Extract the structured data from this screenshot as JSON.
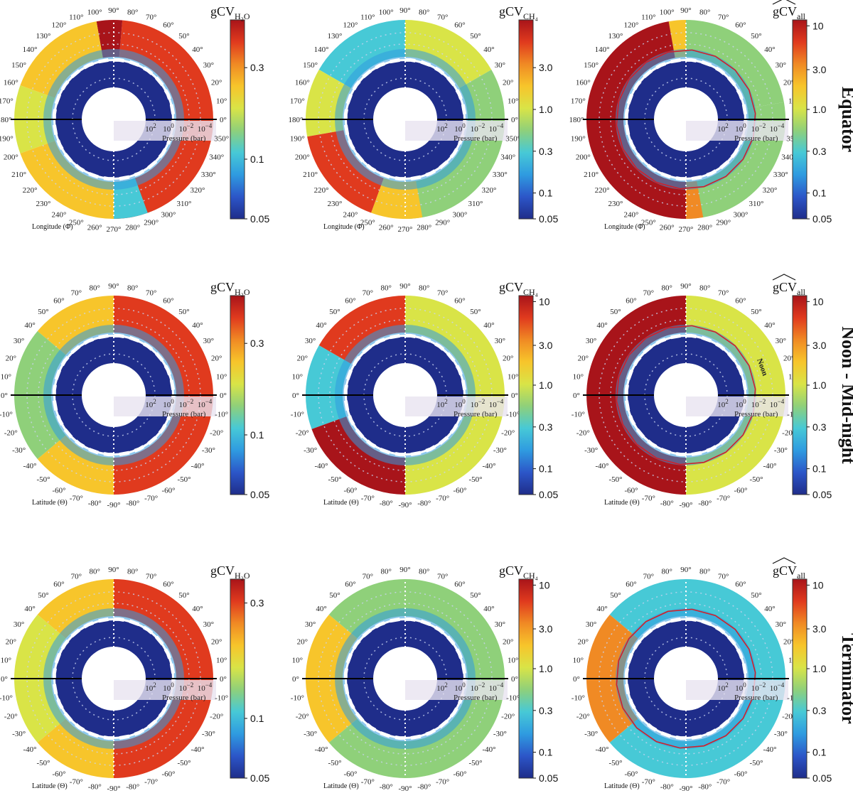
{
  "figure": {
    "rows": [
      {
        "label": "Equator",
        "angle_axis_label": "Longitude (Φ)",
        "angle_ticks": [
          "0°",
          "10°",
          "20°",
          "30°",
          "40°",
          "50°",
          "60°",
          "70°",
          "80°",
          "90°",
          "100°",
          "110°",
          "120°",
          "130°",
          "140°",
          "150°",
          "160°",
          "170°",
          "180°",
          "190°",
          "200°",
          "210°",
          "220°",
          "230°",
          "240°",
          "250°",
          "260°",
          "270°",
          "280°",
          "290°",
          "300°",
          "310°",
          "320°",
          "330°",
          "340°",
          "350°"
        ]
      },
      {
        "label": "Noon - Mid-night",
        "angle_axis_label": "Latitude (Θ)",
        "angle_ticks": [
          "0°",
          "10°",
          "20°",
          "30°",
          "40°",
          "50°",
          "60°",
          "70°",
          "80°",
          "90°",
          "80°",
          "70°",
          "60°",
          "50°",
          "40°",
          "30°",
          "20°",
          "10°",
          "0°",
          "-10°",
          "-20°",
          "-30°",
          "-40°",
          "-50°",
          "-60°",
          "-70°",
          "-80°",
          "-90°",
          "-80°",
          "-70°",
          "-60°",
          "-50°",
          "-40°",
          "-30°",
          "-20°",
          "-10°"
        ]
      },
      {
        "label": "Terminator",
        "angle_axis_label": "Latitude (Θ)",
        "angle_ticks": [
          "0°",
          "10°",
          "20°",
          "30°",
          "40°",
          "50°",
          "60°",
          "70°",
          "80°",
          "90°",
          "80°",
          "70°",
          "60°",
          "50°",
          "40°",
          "30°",
          "20°",
          "10°",
          "0°",
          "-10°",
          "-20°",
          "-30°",
          "-40°",
          "-50°",
          "-60°",
          "-70°",
          "-80°",
          "-90°",
          "-80°",
          "-70°",
          "-60°",
          "-50°",
          "-40°",
          "-30°",
          "-20°",
          "-10°"
        ]
      }
    ],
    "noon_label": "Noon",
    "pressure_axis": {
      "label": "Pressure (bar)",
      "ticks": [
        {
          "base": "10",
          "exp": "2"
        },
        {
          "base": "10",
          "exp": "0"
        },
        {
          "base": "10",
          "exp": "−2"
        },
        {
          "base": "10",
          "exp": "−4"
        }
      ]
    },
    "colorbars": [
      {
        "title_main": "gCV",
        "title_sub": "H₂O",
        "hat": false,
        "ticks": [
          "0.3",
          "0.1",
          "0.05"
        ],
        "positions": [
          0.24,
          0.7,
          1.0
        ]
      },
      {
        "title_main": "gCV",
        "title_sub": "CH₄",
        "hat": false,
        "ticks": [
          "3.0",
          "1.0",
          "0.3",
          "0.1",
          "0.05"
        ],
        "positions": [
          0.24,
          0.45,
          0.66,
          0.87,
          1.0
        ]
      },
      {
        "title_main": "gCV",
        "title_sub": "all",
        "hat": true,
        "ticks": [
          "10",
          "3.0",
          "1.0",
          "0.3",
          "0.1",
          "0.05"
        ],
        "positions": [
          0.03,
          0.25,
          0.45,
          0.66,
          0.87,
          1.0
        ]
      }
    ],
    "colorbars_row2": [
      {
        "title_main": "gCV",
        "title_sub": "H₂O",
        "hat": false,
        "ticks": [
          "0.3",
          "0.1",
          "0.05"
        ],
        "positions": [
          0.24,
          0.7,
          1.0
        ]
      },
      {
        "title_main": "gCV",
        "title_sub": "CH₄",
        "hat": false,
        "ticks": [
          "10",
          "3.0",
          "1.0",
          "0.3",
          "0.1",
          "0.05"
        ],
        "positions": [
          0.03,
          0.25,
          0.45,
          0.66,
          0.87,
          1.0
        ]
      },
      {
        "title_main": "gCV",
        "title_sub": "all",
        "hat": true,
        "ticks": [
          "10",
          "3.0",
          "1.0",
          "0.3",
          "0.1",
          "0.05"
        ],
        "positions": [
          0.03,
          0.25,
          0.45,
          0.66,
          0.87,
          1.0
        ]
      }
    ],
    "colorbars_row3": [
      {
        "title_main": "gCV",
        "title_sub": "H₂O",
        "hat": false,
        "ticks": [
          "0.3",
          "0.1",
          "0.05"
        ],
        "positions": [
          0.12,
          0.7,
          1.0
        ]
      },
      {
        "title_main": "gCV",
        "title_sub": "CH₄",
        "hat": false,
        "ticks": [
          "10",
          "3.0",
          "1.0",
          "0.3",
          "0.1",
          "0.05"
        ],
        "positions": [
          0.03,
          0.25,
          0.45,
          0.66,
          0.87,
          1.0
        ]
      },
      {
        "title_main": "gCV",
        "title_sub": "all",
        "hat": true,
        "ticks": [
          "10",
          "3.0",
          "1.0",
          "0.3",
          "0.1",
          "0.05"
        ],
        "positions": [
          0.03,
          0.25,
          0.45,
          0.66,
          0.87,
          1.0
        ]
      }
    ]
  },
  "chart_data": {
    "type": "heatmap",
    "projection": "polar",
    "panels": [
      {
        "row": "Equator",
        "variable": "gCV_H2O",
        "colorbar_ticks": [
          0.05,
          0.1,
          0.3
        ]
      },
      {
        "row": "Equator",
        "variable": "gCV_CH4",
        "colorbar_ticks": [
          0.05,
          0.1,
          0.3,
          1.0,
          3.0
        ]
      },
      {
        "row": "Equator",
        "variable": "gCV_all",
        "colorbar_ticks": [
          0.05,
          0.1,
          0.3,
          1.0,
          3.0,
          10
        ]
      },
      {
        "row": "Noon - Mid-night",
        "variable": "gCV_H2O",
        "colorbar_ticks": [
          0.05,
          0.1,
          0.3
        ]
      },
      {
        "row": "Noon - Mid-night",
        "variable": "gCV_CH4",
        "colorbar_ticks": [
          0.05,
          0.1,
          0.3,
          1.0,
          3.0,
          10
        ]
      },
      {
        "row": "Noon - Mid-night",
        "variable": "gCV_all",
        "colorbar_ticks": [
          0.05,
          0.1,
          0.3,
          1.0,
          3.0,
          10
        ]
      },
      {
        "row": "Terminator",
        "variable": "gCV_H2O",
        "colorbar_ticks": [
          0.05,
          0.1,
          0.3
        ]
      },
      {
        "row": "Terminator",
        "variable": "gCV_CH4",
        "colorbar_ticks": [
          0.05,
          0.1,
          0.3,
          1.0,
          3.0,
          10
        ]
      },
      {
        "row": "Terminator",
        "variable": "gCV_all",
        "colorbar_ticks": [
          0.05,
          0.1,
          0.3,
          1.0,
          3.0,
          10
        ]
      }
    ],
    "radial_axis": {
      "label": "Pressure (bar)",
      "ticks": [
        "10^2",
        "10^0",
        "10^-2",
        "10^-4"
      ],
      "scale": "log"
    },
    "colormap": "jet",
    "colors": [
      "#1f2d8a",
      "#2c56c8",
      "#2f9be0",
      "#47c9d6",
      "#8fd07a",
      "#d9e447",
      "#f7c52b",
      "#f08a24",
      "#e03a1e",
      "#a8141a"
    ]
  }
}
